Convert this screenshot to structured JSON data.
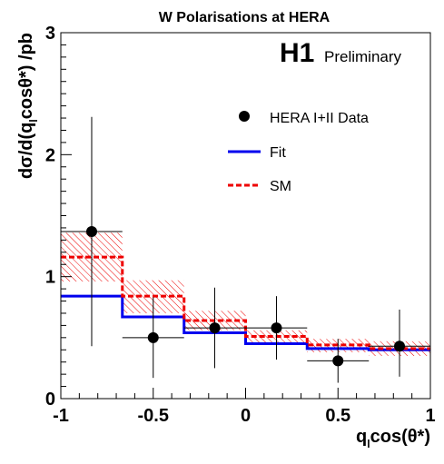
{
  "chart_data": {
    "type": "step-histogram-with-points",
    "title": "W Polarisations at HERA",
    "experiment": "H1",
    "status": "Preliminary",
    "xlabel_parts": {
      "q": "q",
      "l": "l",
      "rest": "cos(θ*)"
    },
    "ylabel_parts": {
      "pre": "dσ/d(q",
      "l": "l",
      "post": "cosθ*) /pb"
    },
    "xlim": [
      -1,
      1
    ],
    "ylim": [
      0,
      3
    ],
    "x_ticks": [
      -1,
      -0.5,
      0,
      0.5,
      1
    ],
    "x_tick_labels": [
      "-1",
      "-0.5",
      "0",
      "0.5",
      "1"
    ],
    "y_ticks": [
      0,
      1,
      2,
      3
    ],
    "y_tick_labels": [
      "0",
      "1",
      "2",
      "3"
    ],
    "legend_position": "upper-right",
    "bin_edges": [
      -1,
      -0.667,
      -0.333,
      0,
      0.333,
      0.667,
      1
    ],
    "series": [
      {
        "name": "HERA I+II Data",
        "kind": "points",
        "color": "#000000",
        "x": [
          -0.833,
          -0.5,
          -0.167,
          0.167,
          0.5,
          0.833
        ],
        "y": [
          1.37,
          0.5,
          0.58,
          0.58,
          0.31,
          0.43
        ],
        "yerr_low": [
          0.94,
          0.33,
          0.33,
          0.26,
          0.18,
          0.25
        ],
        "yerr_high": [
          0.94,
          0.33,
          0.33,
          0.26,
          0.18,
          0.3
        ]
      },
      {
        "name": "Fit",
        "kind": "step",
        "color": "#0000ee",
        "values": [
          0.84,
          0.67,
          0.54,
          0.45,
          0.41,
          0.4
        ]
      },
      {
        "name": "SM",
        "kind": "step-dashed",
        "color": "#ee0000",
        "values": [
          1.16,
          0.84,
          0.64,
          0.51,
          0.44,
          0.41
        ],
        "band_low": [
          0.96,
          0.7,
          0.56,
          0.45,
          0.38,
          0.35
        ],
        "band_high": [
          1.36,
          0.97,
          0.72,
          0.56,
          0.49,
          0.47
        ]
      }
    ]
  }
}
